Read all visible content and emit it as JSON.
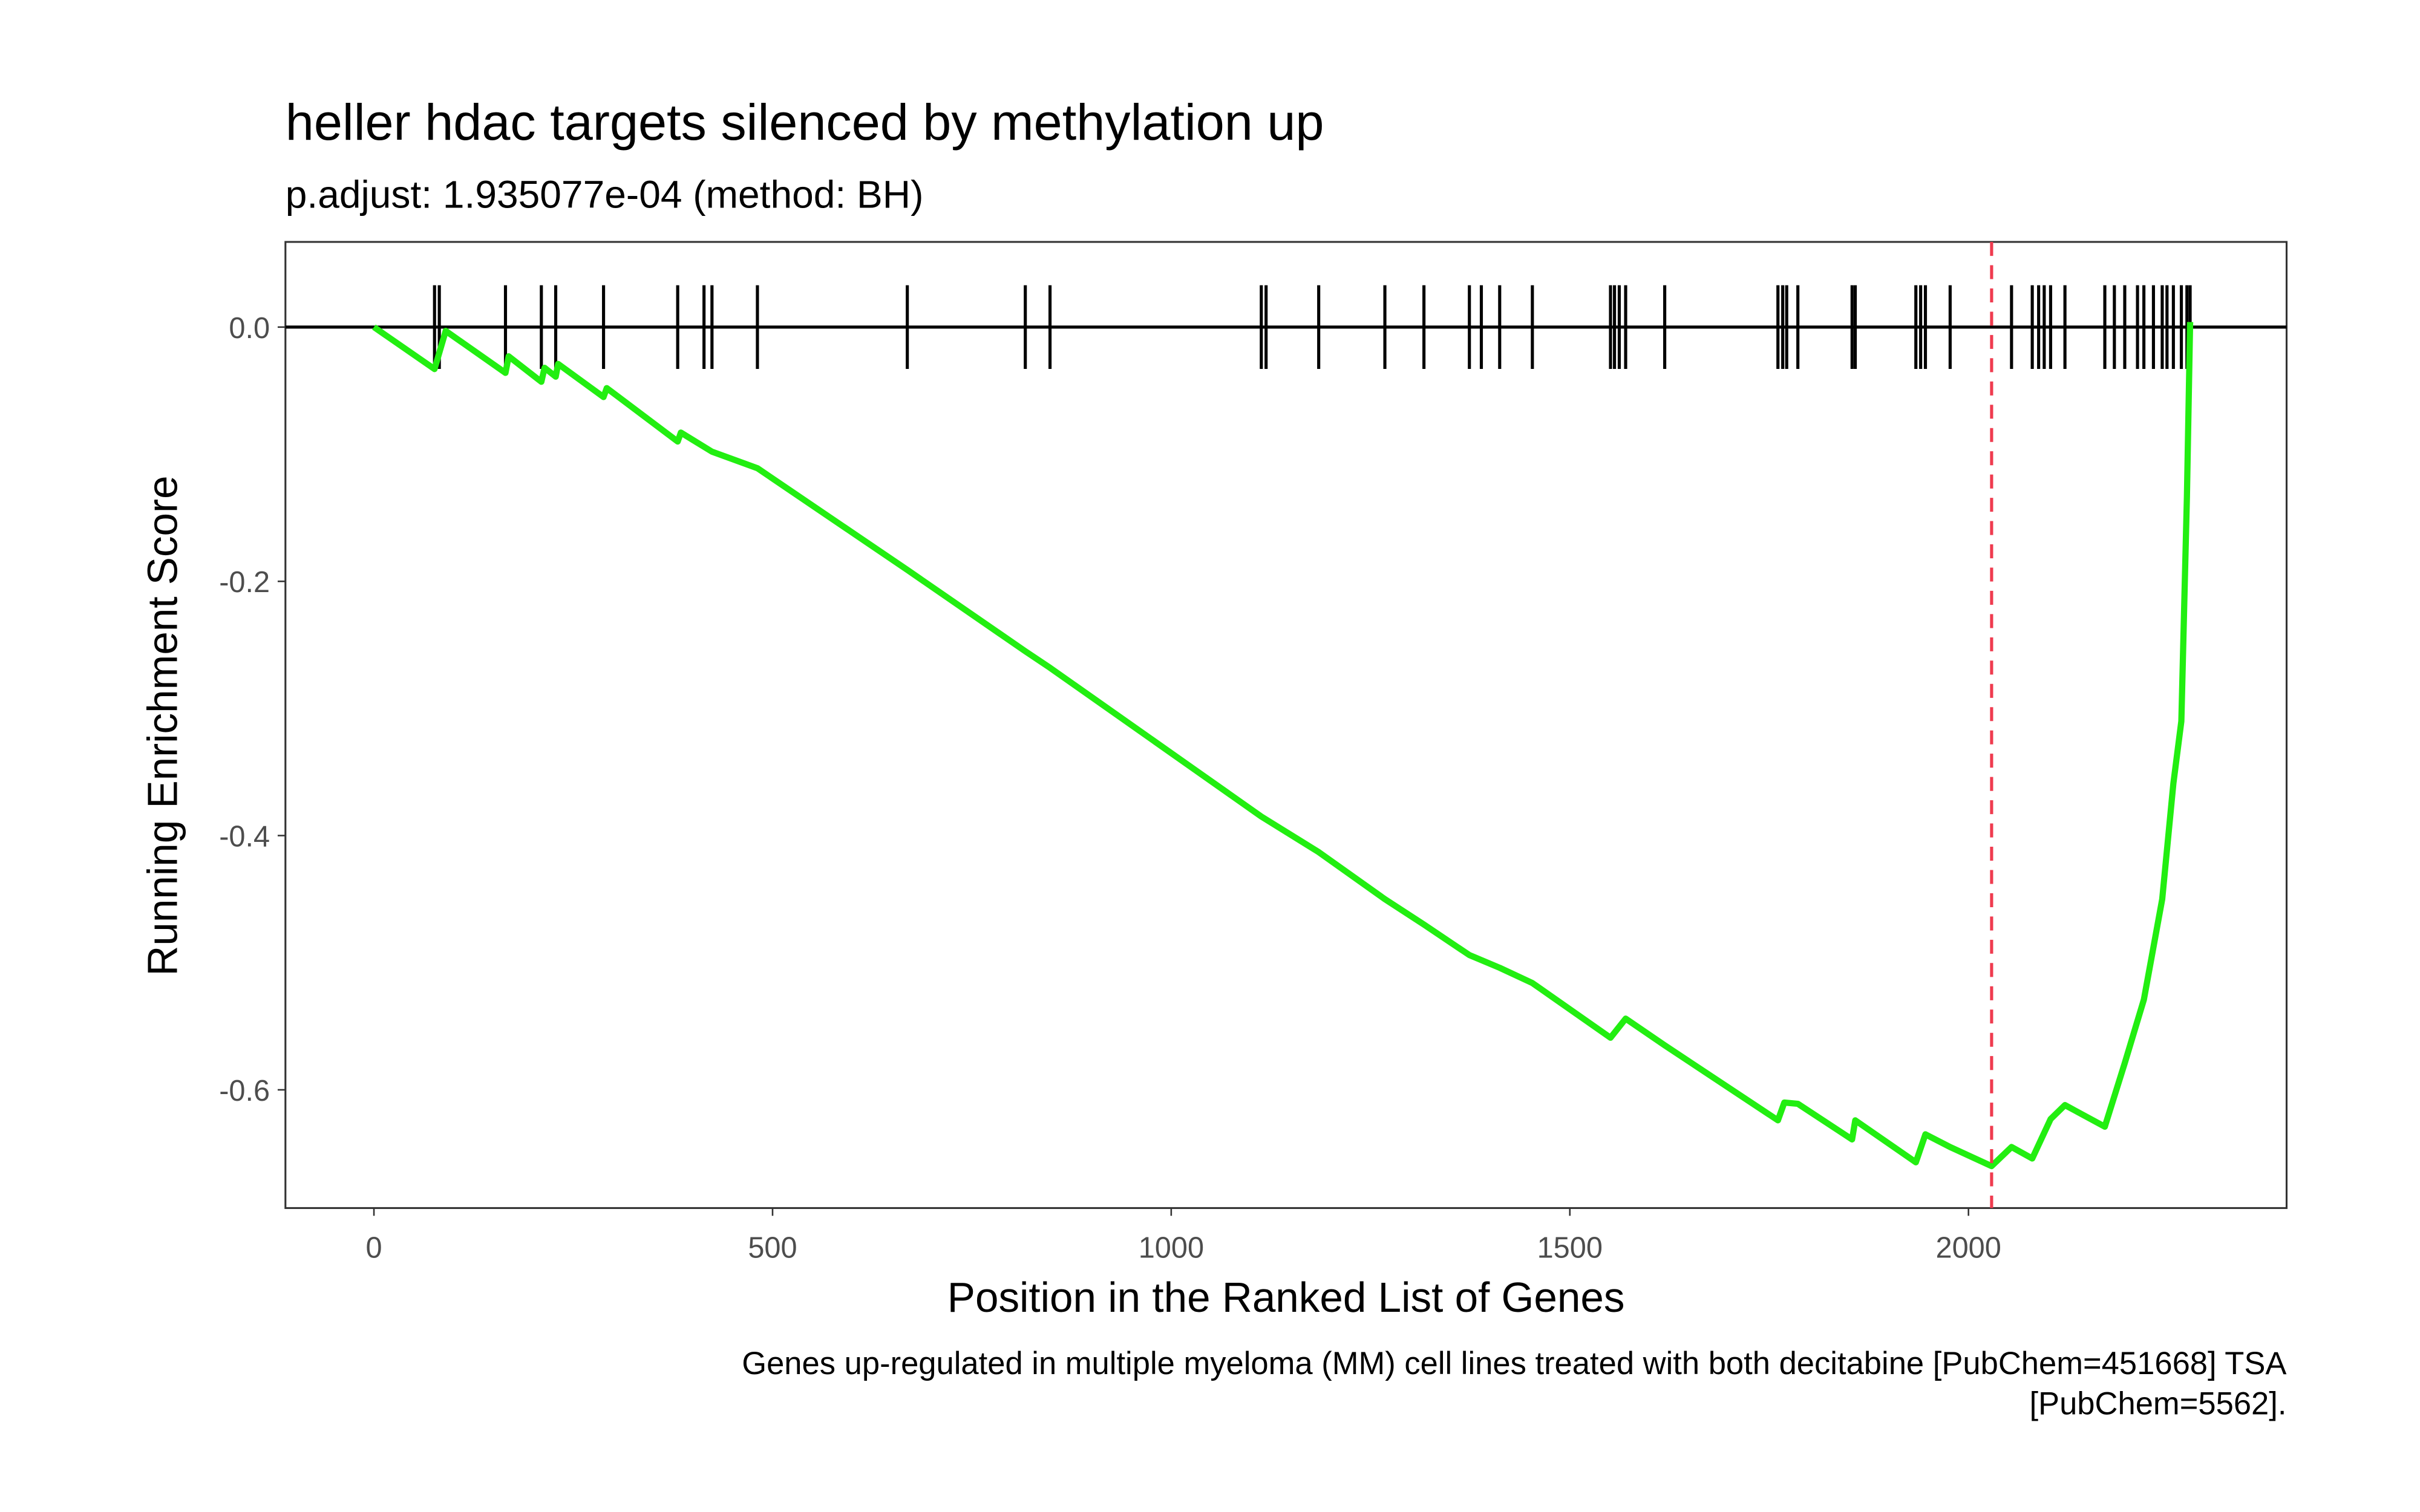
{
  "chart_data": {
    "type": "line",
    "title": "heller hdac targets silenced by methylation up",
    "subtitle": "p.adjust: 1.935077e-04 (method: BH)",
    "xlabel": "Position in the Ranked List of Genes",
    "ylabel": "Running Enrichment Score",
    "caption": [
      "Genes up-regulated in multiple myeloma (MM) cell lines treated with both decitabine [PubChem=451668] TSA",
      "[PubChem=5562]."
    ],
    "xlim": [
      -111,
      2399
    ],
    "ylim": [
      -0.693,
      0.067
    ],
    "xticks": [
      0,
      500,
      1000,
      1500,
      2000
    ],
    "yticks": [
      {
        "value": 0,
        "label": "0.0"
      },
      -0.2,
      -0.4,
      -0.6
    ],
    "grid": false,
    "series": [
      {
        "name": "Running Enrichment Score",
        "color": "#22ee11",
        "x": [
          0,
          76,
          90,
          165,
          169,
          210,
          214,
          228,
          231,
          288,
          292,
          381,
          385,
          424,
          481,
          669,
          817,
          848,
          1113,
          1185,
          1268,
          1317,
          1374,
          1412,
          1453,
          1551,
          1570,
          1619,
          1761,
          1769,
          1786,
          1854,
          1858,
          1934,
          1946,
          1977,
          2029,
          2054,
          2080,
          2103,
          2121,
          2171,
          2196,
          2220,
          2243,
          2257,
          2267,
          2274,
          2278
        ],
        "values": [
          0,
          -0.033,
          -0.003,
          -0.036,
          -0.023,
          -0.043,
          -0.032,
          -0.039,
          -0.029,
          -0.055,
          -0.048,
          -0.09,
          -0.083,
          -0.098,
          -0.111,
          -0.191,
          -0.255,
          -0.268,
          -0.385,
          -0.413,
          -0.45,
          -0.47,
          -0.494,
          -0.504,
          -0.516,
          -0.559,
          -0.544,
          -0.565,
          -0.624,
          -0.61,
          -0.611,
          -0.639,
          -0.624,
          -0.657,
          -0.635,
          -0.645,
          -0.66,
          -0.645,
          -0.654,
          -0.623,
          -0.612,
          -0.629,
          -0.579,
          -0.529,
          -0.45,
          -0.359,
          -0.31,
          -0.133,
          0.004
        ]
      }
    ],
    "hits": [
      76,
      82,
      165,
      210,
      228,
      288,
      381,
      414,
      424,
      481,
      669,
      817,
      848,
      1113,
      1119,
      1185,
      1268,
      1317,
      1374,
      1389,
      1412,
      1453,
      1551,
      1556,
      1562,
      1570,
      1619,
      1761,
      1767,
      1772,
      1786,
      1854,
      1858,
      1934,
      1940,
      1946,
      1977,
      2054,
      2080,
      2088,
      2095,
      2103,
      2121,
      2171,
      2183,
      2196,
      2212,
      2220,
      2232,
      2243,
      2249,
      2257,
      2267,
      2274,
      2278
    ],
    "vline": {
      "x": 2029,
      "color": "#ef3b4f"
    }
  }
}
